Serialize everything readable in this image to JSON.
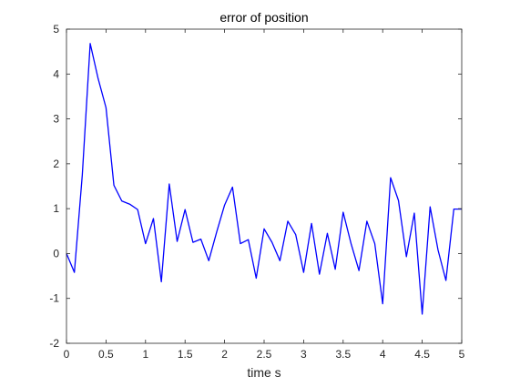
{
  "colors": {
    "background": "#ffffff",
    "axes": "#262626",
    "series_line": "#0000ff"
  },
  "chart_data": {
    "type": "line",
    "title": "error of position",
    "xlabel": "time  s",
    "ylabel": "",
    "xlim": [
      0,
      5
    ],
    "ylim": [
      -2,
      5
    ],
    "x_ticks": [
      0,
      0.5,
      1,
      1.5,
      2,
      2.5,
      3,
      3.5,
      4,
      4.5,
      5
    ],
    "x_tick_labels": [
      "0",
      "0.5",
      "1",
      "1.5",
      "2",
      "2.5",
      "3",
      "3.5",
      "4",
      "4.5",
      "5"
    ],
    "y_ticks": [
      -2,
      -1,
      0,
      1,
      2,
      3,
      4,
      5
    ],
    "y_tick_labels": [
      "-2",
      "-1",
      "0",
      "1",
      "2",
      "3",
      "4",
      "5"
    ],
    "grid": false,
    "box": true,
    "series": [
      {
        "color": "#0000ff",
        "x": [
          0,
          0.1,
          0.2,
          0.3,
          0.4,
          0.5,
          0.6,
          0.7,
          0.8,
          0.9,
          1.0,
          1.1,
          1.2,
          1.3,
          1.4,
          1.5,
          1.6,
          1.7,
          1.8,
          1.9,
          2.0,
          2.1,
          2.2,
          2.3,
          2.4,
          2.5,
          2.6,
          2.7,
          2.8,
          2.9,
          3.0,
          3.1,
          3.2,
          3.3,
          3.4,
          3.5,
          3.6,
          3.7,
          3.8,
          3.9,
          4.0,
          4.1,
          4.2,
          4.3,
          4.4,
          4.5,
          4.6,
          4.7,
          4.8,
          4.9,
          5.0
        ],
        "y": [
          0,
          -0.42,
          1.75,
          4.68,
          3.9,
          3.25,
          1.52,
          1.17,
          1.1,
          0.98,
          0.22,
          0.78,
          -0.63,
          1.55,
          0.27,
          0.98,
          0.25,
          0.32,
          -0.16,
          0.48,
          1.08,
          1.48,
          0.22,
          0.31,
          -0.55,
          0.55,
          0.25,
          -0.16,
          0.72,
          0.42,
          -0.42,
          0.67,
          -0.46,
          0.45,
          -0.35,
          0.92,
          0.22,
          -0.38,
          0.72,
          0.22,
          -1.12,
          1.69,
          1.18,
          -0.07,
          0.9,
          -1.35,
          1.04,
          0.08,
          -0.6,
          0.99,
          0.99
        ]
      }
    ]
  }
}
